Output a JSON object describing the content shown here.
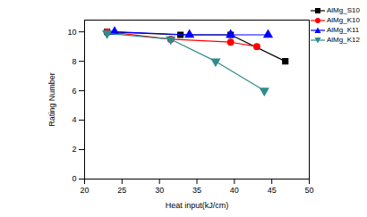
{
  "chart_data": {
    "type": "line",
    "x_label": "Heat input(kJ/cm)",
    "y_label": "Rating Number",
    "xlim": [
      20,
      50
    ],
    "xticks": [
      20,
      25,
      30,
      35,
      40,
      45,
      50
    ],
    "ylim": [
      0,
      10.8
    ],
    "yticks": [
      0,
      2,
      4,
      6,
      8,
      10
    ],
    "legend": "top-right",
    "series": [
      {
        "name": "AlMg_S10",
        "color": "#000000",
        "marker": "square",
        "x": [
          23,
          32.8,
          39.5,
          46.8
        ],
        "values": [
          10,
          9.8,
          9.8,
          8
        ]
      },
      {
        "name": "AlMg_K10",
        "color": "#ff0000",
        "marker": "circle",
        "x": [
          23,
          31.5,
          39.5,
          43
        ],
        "values": [
          10,
          9.5,
          9.3,
          9
        ]
      },
      {
        "name": "AlMg_K11",
        "color": "#0000ff",
        "marker": "triangle",
        "x": [
          24,
          34,
          39.5,
          44.5
        ],
        "values": [
          10,
          9.8,
          9.8,
          9.8
        ]
      },
      {
        "name": "AlMg_K12",
        "color": "#2e8b8b",
        "marker": "triangle-down",
        "x": [
          23,
          31.5,
          37.5,
          44
        ],
        "values": [
          9.9,
          9.5,
          8,
          6
        ]
      }
    ]
  }
}
